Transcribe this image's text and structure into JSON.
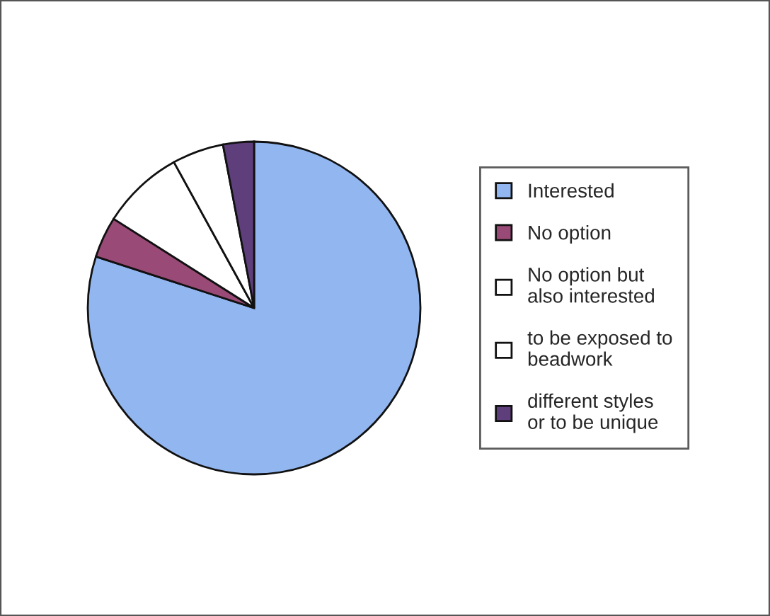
{
  "chart_data": {
    "type": "pie",
    "categories": [
      "Interested",
      "No option",
      "No option but\nalso interested",
      "to be exposed to\nbeadwork",
      "different styles\nor to be unique"
    ],
    "values": [
      80,
      4,
      8,
      5,
      3
    ],
    "colors": [
      "#92b6ef",
      "#9a4a76",
      "#ffffff",
      "#ffffff",
      "#5e3f7c"
    ],
    "legend": "right"
  }
}
